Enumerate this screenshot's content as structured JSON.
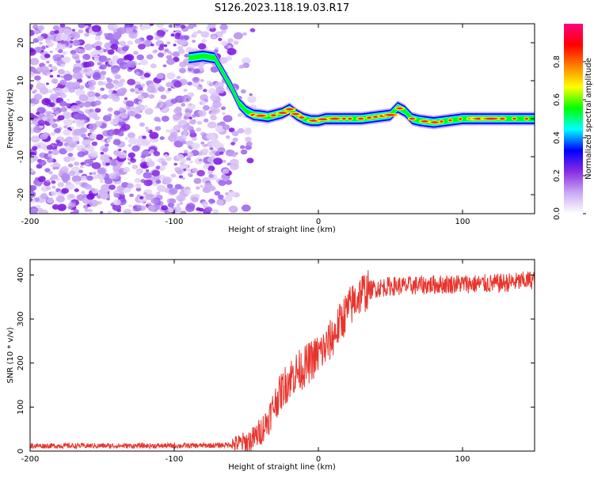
{
  "title": "S126.2023.118.19.03.R17",
  "chart_data": [
    {
      "type": "heatmap",
      "xlabel": "Height of straight line (km)",
      "ylabel": "Frequency (Hz)",
      "xlim": [
        -200,
        150
      ],
      "ylim": [
        -25,
        25
      ],
      "xticks": [
        -200,
        -100,
        0,
        100
      ],
      "yticks": [
        -20,
        -10,
        0,
        10,
        20
      ],
      "colorbar": {
        "label": "Normalized spectral amplitude",
        "range": [
          0,
          1
        ],
        "ticks": [
          0.0,
          0.2,
          0.4,
          0.6,
          0.8
        ],
        "tick_labels": [
          "0.0",
          "0.2",
          "0.4",
          "0.6",
          "0.8"
        ],
        "colormap": [
          "#ffffff",
          "#c9a8f5",
          "#8a2be2",
          "#0000ff",
          "#00ffff",
          "#00ff00",
          "#ffff00",
          "#ff8000",
          "#ff0000",
          "#ff0080"
        ]
      },
      "noise_region_x": [
        -200,
        -60
      ],
      "trace": {
        "x": [
          -90,
          -80,
          -72,
          -66,
          -60,
          -55,
          -50,
          -45,
          -40,
          -35,
          -30,
          -25,
          -20,
          -15,
          -10,
          -5,
          0,
          5,
          10,
          20,
          30,
          40,
          50,
          55,
          60,
          65,
          70,
          80,
          90,
          100,
          110,
          120,
          130,
          140,
          150
        ],
        "y": [
          16,
          16.5,
          16,
          12,
          8,
          4,
          2,
          1,
          0.8,
          0.5,
          1,
          1.5,
          2.5,
          1,
          0,
          -0.5,
          -0.5,
          0,
          0,
          0,
          0,
          0.5,
          1,
          3,
          2,
          0,
          -0.5,
          -1,
          -0.5,
          0,
          0,
          0,
          0,
          0,
          0
        ]
      }
    },
    {
      "type": "line",
      "xlabel": "Height of straight line (km)",
      "ylabel": "SNR (10 * v/v)",
      "xlim": [
        -200,
        150
      ],
      "ylim": [
        0,
        435
      ],
      "xticks": [
        -200,
        -100,
        0,
        100
      ],
      "yticks": [
        0,
        100,
        200,
        300,
        400
      ],
      "color": "#e8342c",
      "envelope": {
        "x": [
          -200,
          -150,
          -100,
          -70,
          -60,
          -50,
          -45,
          -40,
          -35,
          -30,
          -25,
          -20,
          -15,
          -10,
          -5,
          0,
          5,
          10,
          15,
          20,
          25,
          30,
          35,
          40,
          50,
          60,
          80,
          100,
          120,
          140,
          150
        ],
        "y": [
          12,
          12,
          12,
          13,
          15,
          20,
          28,
          45,
          70,
          110,
          140,
          165,
          180,
          190,
          205,
          220,
          235,
          260,
          290,
          320,
          340,
          360,
          365,
          370,
          375,
          375,
          378,
          380,
          380,
          385,
          390
        ]
      }
    }
  ]
}
